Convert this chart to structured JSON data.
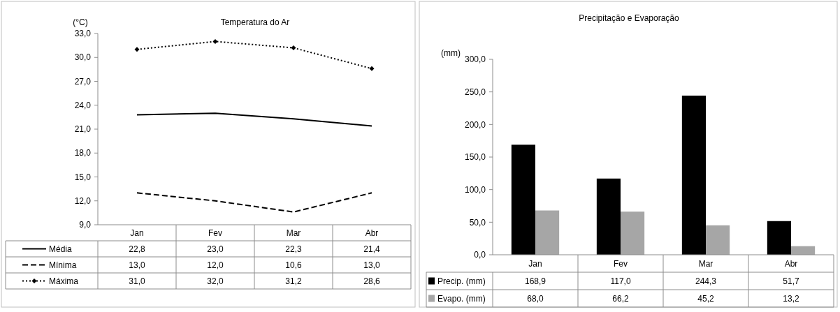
{
  "chart_data": [
    {
      "type": "line",
      "title": "Temperatura do Ar",
      "ylabel": "(°C)",
      "categories": [
        "Jan",
        "Fev",
        "Mar",
        "Abr"
      ],
      "ylim": [
        9,
        33
      ],
      "yticks": [
        {
          "value": 9,
          "label": "9,0"
        },
        {
          "value": 12,
          "label": "12,0"
        },
        {
          "value": 15,
          "label": "15,0"
        },
        {
          "value": 18,
          "label": "18,0"
        },
        {
          "value": 21,
          "label": "21,0"
        },
        {
          "value": 24,
          "label": "24,0"
        },
        {
          "value": 27,
          "label": "27,0"
        },
        {
          "value": 30,
          "label": "30,0"
        },
        {
          "value": 33,
          "label": "33,0"
        }
      ],
      "legend": "bottom",
      "series": [
        {
          "name": "Média",
          "color": "#000000",
          "line_style": "solid",
          "marker": "none",
          "values": [
            22.8,
            23.0,
            22.3,
            21.4
          ],
          "value_labels": [
            "22,8",
            "23,0",
            "22,3",
            "21,4"
          ]
        },
        {
          "name": "Mínima",
          "color": "#000000",
          "line_style": "dashed",
          "marker": "none",
          "values": [
            13.0,
            12.0,
            10.6,
            13.0
          ],
          "value_labels": [
            "13,0",
            "12,0",
            "10,6",
            "13,0"
          ]
        },
        {
          "name": "Máxima",
          "color": "#000000",
          "line_style": "dotted",
          "marker": "diamond",
          "values": [
            31.0,
            32.0,
            31.2,
            28.6
          ],
          "value_labels": [
            "31,0",
            "32,0",
            "31,2",
            "28,6"
          ]
        }
      ]
    },
    {
      "type": "bar",
      "title": "Precipitação e Evaporação",
      "ylabel": "(mm)",
      "categories": [
        "Jan",
        "Fev",
        "Mar",
        "Abr"
      ],
      "ylim": [
        0,
        300
      ],
      "yticks": [
        {
          "value": 0,
          "label": "0,0"
        },
        {
          "value": 50,
          "label": "50,0"
        },
        {
          "value": 100,
          "label": "100,0"
        },
        {
          "value": 150,
          "label": "150,0"
        },
        {
          "value": 200,
          "label": "200,0"
        },
        {
          "value": 250,
          "label": "250,0"
        },
        {
          "value": 300,
          "label": "300,0"
        }
      ],
      "legend": "bottom",
      "series": [
        {
          "name": "Precip. (mm)",
          "color": "#000000",
          "values": [
            168.9,
            117.0,
            244.3,
            51.7
          ],
          "value_labels": [
            "168,9",
            "117,0",
            "244,3",
            "51,7"
          ]
        },
        {
          "name": "Evapo. (mm)",
          "color": "#a6a6a6",
          "values": [
            68.0,
            66.2,
            45.2,
            13.2
          ],
          "value_labels": [
            "68,0",
            "66,2",
            "45,2",
            "13,2"
          ]
        }
      ]
    }
  ]
}
